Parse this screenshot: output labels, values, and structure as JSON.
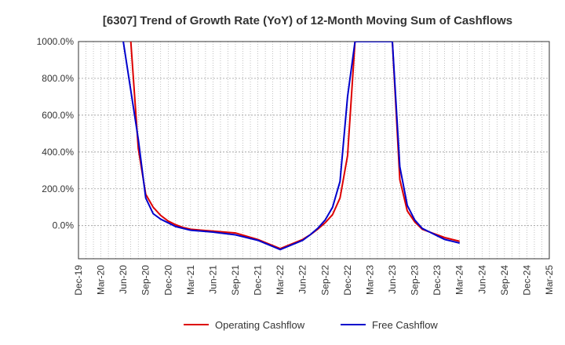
{
  "chart_data": {
    "type": "line",
    "title": "[6307]  Trend of Growth Rate (YoY) of 12-Month Moving Sum of Cashflows",
    "xlabel": "",
    "ylabel": "",
    "ylim": [
      -180,
      1000
    ],
    "grid": true,
    "legend_position": "bottom",
    "x_ticks": [
      "Dec-19",
      "Mar-20",
      "Jun-20",
      "Sep-20",
      "Dec-20",
      "Mar-21",
      "Jun-21",
      "Sep-21",
      "Dec-21",
      "Mar-22",
      "Jun-22",
      "Sep-22",
      "Dec-22",
      "Mar-23",
      "Jun-23",
      "Sep-23",
      "Dec-23",
      "Mar-24",
      "Jun-24",
      "Sep-24",
      "Dec-24",
      "Mar-25"
    ],
    "y_ticks": [
      0,
      200,
      400,
      600,
      800,
      1000
    ],
    "y_tick_labels": [
      "0.0%",
      "200.0%",
      "400.0%",
      "600.0%",
      "800.0%",
      "1000.0%"
    ],
    "series": [
      {
        "name": "Operating Cashflow",
        "color": "#dd0000",
        "x": [
          "Aug-20",
          "Sep-20",
          "Oct-20",
          "Nov-20",
          "Dec-20",
          "Jan-21",
          "Feb-21",
          "Mar-21",
          "Jun-21",
          "Sep-21",
          "Dec-21",
          "Mar-22",
          "Jun-22",
          "Jul-22",
          "Aug-22",
          "Sep-22",
          "Oct-22",
          "Nov-22",
          "Dec-22",
          "Jan-23",
          "Feb-23",
          "Jun-23",
          "Jul-23",
          "Aug-23",
          "Sep-23",
          "Oct-23",
          "Nov-23",
          "Dec-23",
          "Jan-24",
          "Feb-24",
          "Mar-24"
        ],
        "values": [
          420,
          170,
          100,
          55,
          25,
          5,
          -10,
          -20,
          -30,
          -40,
          -75,
          -125,
          -75,
          -50,
          -20,
          15,
          60,
          150,
          380,
          1000,
          1000,
          1000,
          250,
          80,
          20,
          -20,
          -35,
          -50,
          -65,
          -75,
          -85
        ],
        "note_top": "values above 1000 clipped at axis top",
        "pre_start": {
          "x": "Jul-20",
          "value": 1000
        }
      },
      {
        "name": "Free Cashflow",
        "color": "#0000cc",
        "x": [
          "Aug-20",
          "Sep-20",
          "Oct-20",
          "Nov-20",
          "Dec-20",
          "Jan-21",
          "Feb-21",
          "Mar-21",
          "Jun-21",
          "Sep-21",
          "Dec-21",
          "Mar-22",
          "Jun-22",
          "Jul-22",
          "Aug-22",
          "Sep-22",
          "Oct-22",
          "Nov-22",
          "Dec-22",
          "Jan-23",
          "Feb-23",
          "Jun-23",
          "Jul-23",
          "Aug-23",
          "Sep-23",
          "Oct-23",
          "Nov-23",
          "Dec-23",
          "Jan-24",
          "Feb-24",
          "Mar-24"
        ],
        "values": [
          470,
          150,
          65,
          35,
          15,
          -5,
          -15,
          -25,
          -35,
          -50,
          -80,
          -130,
          -80,
          -50,
          -15,
          30,
          100,
          240,
          700,
          1000,
          1000,
          1000,
          320,
          110,
          30,
          -15,
          -35,
          -55,
          -75,
          -85,
          -95
        ],
        "pre_start": {
          "x": "Jun-20",
          "value": 1000
        }
      }
    ]
  }
}
